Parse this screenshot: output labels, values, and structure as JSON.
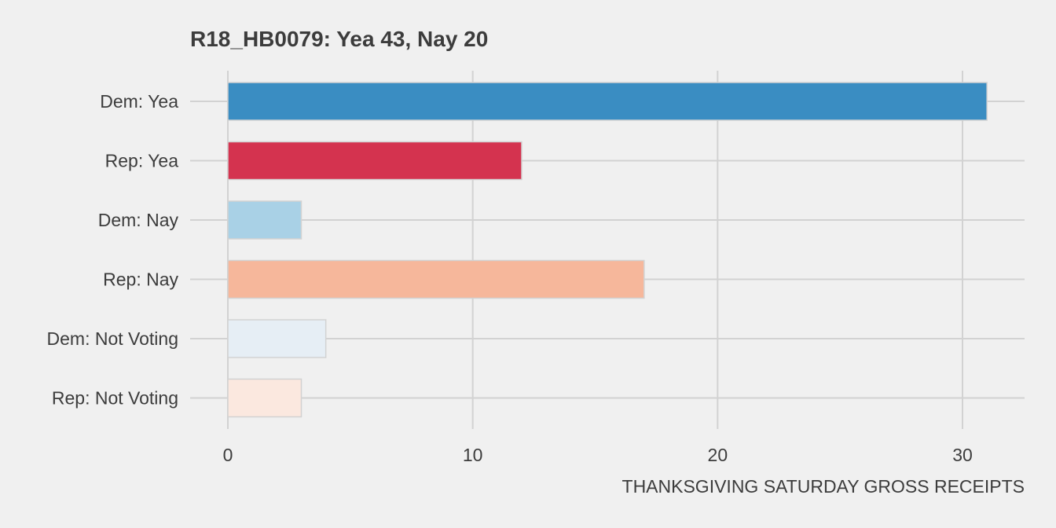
{
  "chart_data": {
    "type": "bar",
    "orientation": "horizontal",
    "title": "R18_HB0079: Yea 43, Nay 20",
    "xlabel": "THANKSGIVING SATURDAY GROSS RECEIPTS",
    "ylabel": "",
    "xlim": [
      0,
      32.6
    ],
    "xticks": [
      0,
      10,
      20,
      30
    ],
    "grid": true,
    "legend": "none",
    "categories": [
      "Dem: Yea",
      "Rep: Yea",
      "Dem: Nay",
      "Rep: Nay",
      "Dem: Not Voting",
      "Rep: Not Voting"
    ],
    "values": [
      31,
      12,
      3,
      17,
      4,
      3
    ],
    "colors": [
      "#3a8dc2",
      "#d4334f",
      "#a9d1e6",
      "#f6b79b",
      "#e6eef5",
      "#fbe8df"
    ]
  },
  "style": {
    "background": "#f0f0f0",
    "grid_color": "#d2d2d2",
    "bar_outline": "#d2d2d2",
    "text_color": "#3c3c3c"
  }
}
